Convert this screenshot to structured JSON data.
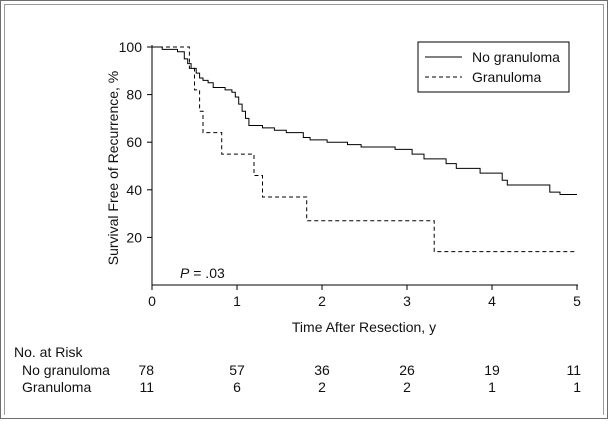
{
  "chart_data": {
    "type": "line",
    "subtype": "kaplan-meier-step",
    "xlabel": "Time After Resection, y",
    "ylabel": "Survival Free of Recurrence, %",
    "xlim": [
      0,
      5
    ],
    "ylim": [
      0,
      100
    ],
    "xticks": [
      "0",
      "1",
      "2",
      "3",
      "4",
      "5"
    ],
    "yticks": [
      "20",
      "40",
      "60",
      "80",
      "100"
    ],
    "grid": false,
    "legend_position": "top-right",
    "annotation": {
      "prefix": "P",
      "text": " = .03"
    },
    "series": [
      {
        "name": "No granuloma",
        "style": "solid",
        "color": "#000000",
        "points": [
          [
            0,
            100
          ],
          [
            0.12,
            99
          ],
          [
            0.3,
            98
          ],
          [
            0.38,
            95
          ],
          [
            0.42,
            93
          ],
          [
            0.46,
            91
          ],
          [
            0.52,
            89
          ],
          [
            0.56,
            87
          ],
          [
            0.6,
            86
          ],
          [
            0.66,
            85
          ],
          [
            0.72,
            83
          ],
          [
            0.82,
            83
          ],
          [
            0.86,
            82
          ],
          [
            0.94,
            81
          ],
          [
            0.98,
            79
          ],
          [
            1.02,
            76
          ],
          [
            1.06,
            73
          ],
          [
            1.1,
            70
          ],
          [
            1.14,
            67
          ],
          [
            1.3,
            66
          ],
          [
            1.44,
            65
          ],
          [
            1.58,
            64
          ],
          [
            1.78,
            62
          ],
          [
            1.86,
            61
          ],
          [
            2.06,
            60
          ],
          [
            2.3,
            59
          ],
          [
            2.46,
            58
          ],
          [
            2.86,
            57
          ],
          [
            3.06,
            55
          ],
          [
            3.2,
            53
          ],
          [
            3.46,
            51
          ],
          [
            3.58,
            49
          ],
          [
            3.86,
            47
          ],
          [
            4.12,
            44
          ],
          [
            4.18,
            42
          ],
          [
            4.6,
            42
          ],
          [
            4.68,
            39
          ],
          [
            4.8,
            38
          ],
          [
            5.0,
            38
          ]
        ]
      },
      {
        "name": "Granuloma",
        "style": "dashed",
        "color": "#000000",
        "points": [
          [
            0,
            100
          ],
          [
            0.4,
            100
          ],
          [
            0.44,
            91
          ],
          [
            0.5,
            82
          ],
          [
            0.56,
            73
          ],
          [
            0.6,
            64
          ],
          [
            0.82,
            55
          ],
          [
            1.2,
            46
          ],
          [
            1.3,
            37
          ],
          [
            1.82,
            27
          ],
          [
            3.32,
            14
          ],
          [
            5.0,
            14
          ]
        ]
      }
    ],
    "risk_table": {
      "title": "No. at Risk",
      "times": [
        0,
        1,
        2,
        3,
        4,
        5
      ],
      "rows": [
        {
          "label": "No granuloma",
          "values": [
            "78",
            "57",
            "36",
            "26",
            "19",
            "11"
          ]
        },
        {
          "label": "Granuloma",
          "values": [
            "11",
            "6",
            "2",
            "2",
            "1",
            "1"
          ]
        }
      ]
    }
  }
}
